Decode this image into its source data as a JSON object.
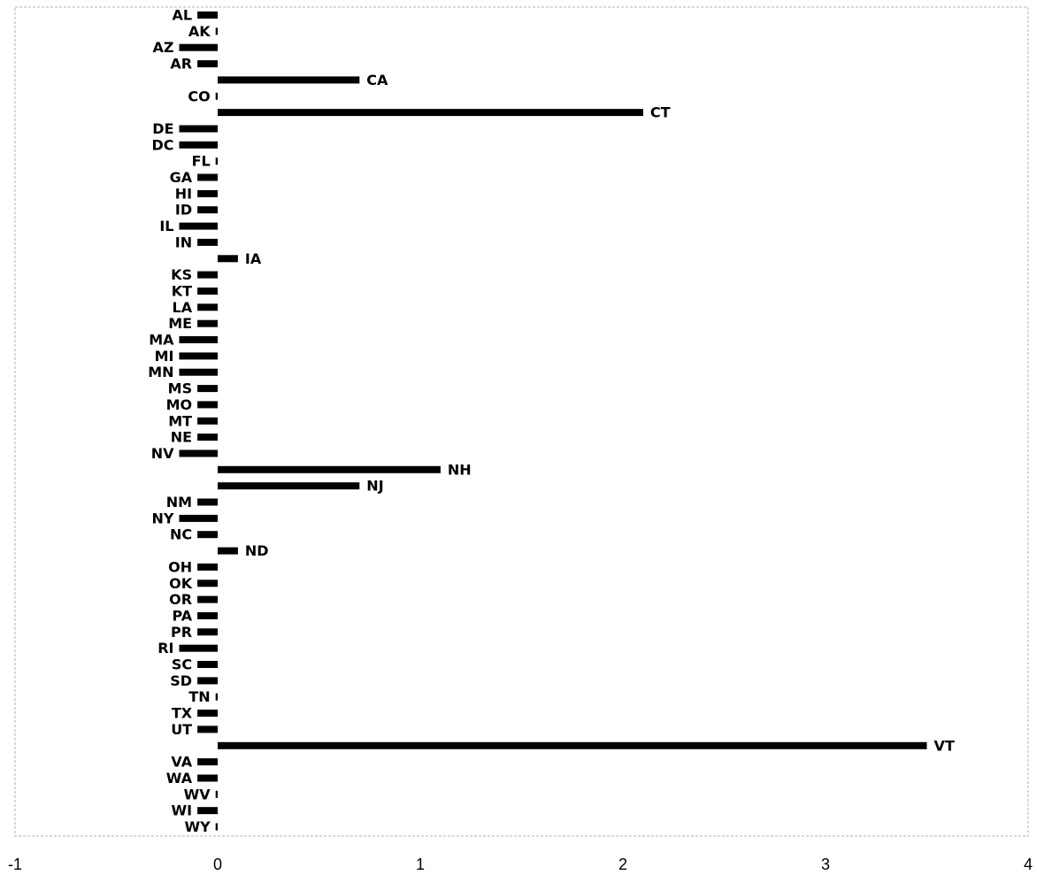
{
  "chart_data": {
    "type": "bar",
    "orientation": "horizontal",
    "title": "",
    "xlabel": "",
    "ylabel": "",
    "xlim": [
      -1,
      4
    ],
    "xticks": [
      "-1",
      "0",
      "1",
      "2",
      "3",
      "4"
    ],
    "grid": false,
    "legend": "none",
    "bar_color": "#000000",
    "label_placement": "outside bar end",
    "categories": [
      "AL",
      "AK",
      "AZ",
      "AR",
      "CA",
      "CO",
      "CT",
      "DE",
      "DC",
      "FL",
      "GA",
      "HI",
      "ID",
      "IL",
      "IN",
      "IA",
      "KS",
      "KT",
      "LA",
      "ME",
      "MA",
      "MI",
      "MN",
      "MS",
      "MO",
      "MT",
      "NE",
      "NV",
      "NH",
      "NJ",
      "NM",
      "NY",
      "NC",
      "ND",
      "OH",
      "OK",
      "OR",
      "PA",
      "PR",
      "RI",
      "SC",
      "SD",
      "TN",
      "TX",
      "UT",
      "VT",
      "VA",
      "WA",
      "WV",
      "WI",
      "WY"
    ],
    "values": [
      -0.1,
      -0.01,
      -0.19,
      -0.1,
      0.7,
      -0.01,
      2.1,
      -0.19,
      -0.19,
      -0.01,
      -0.1,
      -0.1,
      -0.1,
      -0.19,
      -0.1,
      0.1,
      -0.1,
      -0.1,
      -0.1,
      -0.1,
      -0.19,
      -0.19,
      -0.19,
      -0.1,
      -0.1,
      -0.1,
      -0.1,
      -0.19,
      1.1,
      0.7,
      -0.1,
      -0.19,
      -0.1,
      0.1,
      -0.1,
      -0.1,
      -0.1,
      -0.1,
      -0.1,
      -0.19,
      -0.1,
      -0.1,
      -0.01,
      -0.1,
      -0.1,
      3.5,
      -0.1,
      -0.1,
      -0.01,
      -0.1,
      -0.01
    ]
  }
}
